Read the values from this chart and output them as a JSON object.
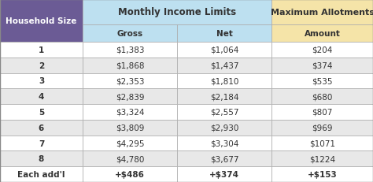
{
  "col_headers_row1": [
    "",
    "Monthly Income Limits",
    "",
    "Maximum Allotments"
  ],
  "col_headers_row2": [
    "Household Size",
    "Gross",
    "Net",
    "Amount"
  ],
  "rows": [
    [
      "1",
      "$1,383",
      "$1,064",
      "$204"
    ],
    [
      "2",
      "$1,868",
      "$1,437",
      "$374"
    ],
    [
      "3",
      "$2,353",
      "$1,810",
      "$535"
    ],
    [
      "4",
      "$2,839",
      "$2,184",
      "$680"
    ],
    [
      "5",
      "$3,324",
      "$2,557",
      "$807"
    ],
    [
      "6",
      "$3,809",
      "$2,930",
      "$969"
    ],
    [
      "7",
      "$4,295",
      "$3,304",
      "$1071"
    ],
    [
      "8",
      "$4,780",
      "$3,677",
      "$1224"
    ],
    [
      "Each add'l",
      "+$486",
      "+$374",
      "+$153"
    ]
  ],
  "header_bg_col0": "#6b5b95",
  "header_bg_monthly": "#bde0f0",
  "header_bg_allotments": "#f5e4a8",
  "header_text_color_col0": "#ffffff",
  "header_text_color_monthly": "#333333",
  "header_text_color_allotments": "#333333",
  "row_bg_odd": "#ffffff",
  "row_bg_even": "#e8e8e8",
  "row_text_color": "#333333",
  "last_row_bg": "#ffffff",
  "last_row_text_color": "#333333",
  "border_color": "#aaaaaa",
  "figsize": [
    4.74,
    2.32
  ],
  "dpi": 100
}
